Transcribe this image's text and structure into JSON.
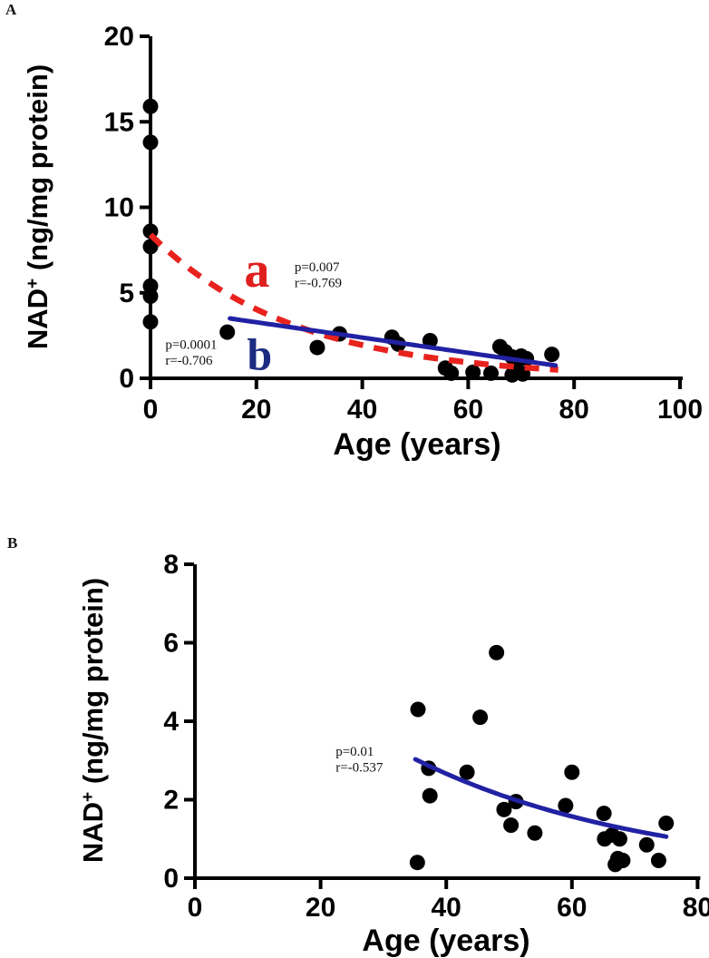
{
  "figure": {
    "panel_a_label": "A",
    "panel_b_label": "B",
    "background": "#ffffff",
    "colors": {
      "points": "#000000",
      "axis": "#000000",
      "red_curve": "#e8231e",
      "blue_curve": "#2121a3",
      "label_a": "#e0201f",
      "label_b": "#1c2c80",
      "stats_text": "#111111"
    }
  },
  "chart_data": [
    {
      "panel": "A",
      "type": "scatter",
      "xlabel": "Age (years)",
      "ylabel": "NAD+ (ng/mg protein)",
      "ylabel_parts": {
        "base": "NAD",
        "sup": "+",
        "rest": " (ng/mg protein)"
      },
      "xlim": [
        0,
        100
      ],
      "ylim": [
        0,
        20
      ],
      "xticks": [
        0,
        20,
        40,
        60,
        80,
        100
      ],
      "yticks": [
        0,
        5,
        10,
        15,
        20
      ],
      "grid": false,
      "legend": "none",
      "point_color": "#000000",
      "points": [
        [
          0,
          15.9
        ],
        [
          0,
          13.8
        ],
        [
          0,
          8.6
        ],
        [
          0,
          7.7
        ],
        [
          0,
          5.4
        ],
        [
          0,
          4.8
        ],
        [
          0,
          3.3
        ],
        [
          14.5,
          2.7
        ],
        [
          31.5,
          1.8
        ],
        [
          35.7,
          2.6
        ],
        [
          45.6,
          2.4
        ],
        [
          46.8,
          2.0
        ],
        [
          52.8,
          2.2
        ],
        [
          55.7,
          0.6
        ],
        [
          56.8,
          0.3
        ],
        [
          60.9,
          0.35
        ],
        [
          64.3,
          0.3
        ],
        [
          66.0,
          1.85
        ],
        [
          67.0,
          1.55
        ],
        [
          68.3,
          1.25
        ],
        [
          69.3,
          1.0
        ],
        [
          70.0,
          1.3
        ],
        [
          71.0,
          1.15
        ],
        [
          68.3,
          0.2
        ],
        [
          70.3,
          0.25
        ],
        [
          75.8,
          1.4
        ]
      ],
      "curves": [
        {
          "id": "a",
          "color": "#e8231e",
          "style": "dashed",
          "shape": "exp",
          "x_start": 0,
          "y_start": 8.4,
          "x_end": 77,
          "y_end": 0.5
        },
        {
          "id": "b",
          "color": "#2121a3",
          "style": "solid",
          "shape": "line",
          "x_start": 15,
          "y_start": 3.5,
          "x_end": 76.5,
          "y_end": 0.75
        }
      ],
      "annotations": [
        {
          "kind": "curve-letter",
          "text": "a",
          "color": "#e0201f",
          "x": 20.1,
          "y": 6.3,
          "size": 56
        },
        {
          "kind": "stats",
          "lines": [
            "p=0.007",
            "r=-0.769"
          ],
          "x": 27.2,
          "y": 6.9
        },
        {
          "kind": "curve-letter",
          "text": "b",
          "color": "#1c2c80",
          "x": 20.6,
          "y": 1.4,
          "size": 50
        },
        {
          "kind": "stats",
          "lines": [
            "p=0.0001",
            "r=-0.706"
          ],
          "x": 2.8,
          "y": 2.35
        }
      ]
    },
    {
      "panel": "B",
      "type": "scatter",
      "xlabel": "Age (years)",
      "ylabel": "NAD+ (ng/mg protein)",
      "ylabel_parts": {
        "base": "NAD",
        "sup": "+",
        "rest": " (ng/mg protein)"
      },
      "xlim": [
        0,
        80
      ],
      "ylim": [
        0,
        8
      ],
      "xticks": [
        0,
        20,
        40,
        60,
        80
      ],
      "yticks": [
        0,
        2,
        4,
        6,
        8
      ],
      "grid": false,
      "legend": "none",
      "point_color": "#000000",
      "points": [
        [
          35.4,
          0.4
        ],
        [
          35.5,
          4.3
        ],
        [
          37.2,
          2.8
        ],
        [
          37.4,
          2.1
        ],
        [
          43.3,
          2.7
        ],
        [
          45.4,
          4.1
        ],
        [
          48.0,
          5.75
        ],
        [
          49.2,
          1.75
        ],
        [
          50.3,
          1.35
        ],
        [
          51.1,
          1.95
        ],
        [
          54.1,
          1.15
        ],
        [
          59.0,
          1.85
        ],
        [
          60.0,
          2.7
        ],
        [
          65.1,
          1.65
        ],
        [
          65.2,
          1.0
        ],
        [
          66.4,
          1.1
        ],
        [
          67.6,
          1.0
        ],
        [
          66.9,
          0.35
        ],
        [
          67.3,
          0.5
        ],
        [
          68.1,
          0.45
        ],
        [
          71.9,
          0.85
        ],
        [
          73.8,
          0.45
        ],
        [
          75.0,
          1.4
        ]
      ],
      "curves": [
        {
          "id": "b1",
          "color": "#2121a3",
          "style": "solid",
          "shape": "exp",
          "x_start": 35.1,
          "y_start": 3.03,
          "x_end": 75,
          "y_end": 1.06
        }
      ],
      "annotations": [
        {
          "kind": "stats",
          "lines": [
            "p=0.01",
            "r=-0.537"
          ],
          "x": 22.4,
          "y": 3.4
        }
      ]
    }
  ]
}
